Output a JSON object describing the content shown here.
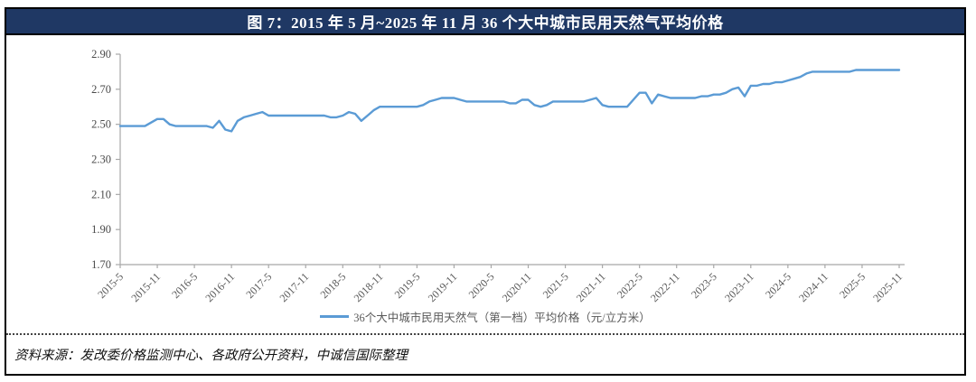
{
  "figure": {
    "title": "图 7：2015 年 5 月~2025 年 11 月 36 个大中城市民用天然气平均价格"
  },
  "chart_data": {
    "type": "line",
    "title": "图 7：2015 年 5 月~2025 年 11 月 36 个大中城市民用天然气平均价格",
    "xlabel": "",
    "ylabel": "",
    "x_start": "2015-5",
    "x_end": "2025-11",
    "x_frequency": "monthly",
    "x_tick_every_n_months": 6,
    "x_tick_labels": [
      "2015-5",
      "2015-11",
      "2016-5",
      "2016-11",
      "2017-5",
      "2017-11",
      "2018-5",
      "2018-11",
      "2019-5",
      "2019-11",
      "2020-5",
      "2020-11",
      "2021-5",
      "2021-11",
      "2022-5",
      "2022-11",
      "2023-5",
      "2023-11",
      "2024-5",
      "2024-11",
      "2025-5",
      "2025-11"
    ],
    "y_tick_labels": [
      "2.90",
      "2.70",
      "2.50",
      "2.30",
      "2.10",
      "1.90",
      "1.70"
    ],
    "ylim": [
      1.7,
      2.9
    ],
    "grid": false,
    "legend_position": "bottom",
    "series": [
      {
        "name": "36个大中城市民用天然气（第一档）平均价格（元/立方米）",
        "color": "#5B9BD5",
        "values": [
          2.49,
          2.49,
          2.49,
          2.49,
          2.49,
          2.51,
          2.53,
          2.53,
          2.5,
          2.49,
          2.49,
          2.49,
          2.49,
          2.49,
          2.49,
          2.48,
          2.52,
          2.47,
          2.46,
          2.52,
          2.54,
          2.55,
          2.56,
          2.57,
          2.55,
          2.55,
          2.55,
          2.55,
          2.55,
          2.55,
          2.55,
          2.55,
          2.55,
          2.55,
          2.54,
          2.54,
          2.55,
          2.57,
          2.56,
          2.52,
          2.55,
          2.58,
          2.6,
          2.6,
          2.6,
          2.6,
          2.6,
          2.6,
          2.6,
          2.61,
          2.63,
          2.64,
          2.65,
          2.65,
          2.65,
          2.64,
          2.63,
          2.63,
          2.63,
          2.63,
          2.63,
          2.63,
          2.63,
          2.62,
          2.62,
          2.64,
          2.64,
          2.61,
          2.6,
          2.61,
          2.63,
          2.63,
          2.63,
          2.63,
          2.63,
          2.63,
          2.64,
          2.65,
          2.61,
          2.6,
          2.6,
          2.6,
          2.6,
          2.64,
          2.68,
          2.68,
          2.62,
          2.67,
          2.66,
          2.65,
          2.65,
          2.65,
          2.65,
          2.65,
          2.66,
          2.66,
          2.67,
          2.67,
          2.68,
          2.7,
          2.71,
          2.66,
          2.72,
          2.72,
          2.73,
          2.73,
          2.74,
          2.74,
          2.75,
          2.76,
          2.77,
          2.79,
          2.8,
          2.8,
          2.8,
          2.8,
          2.8,
          2.8,
          2.8,
          2.81,
          2.81,
          2.81,
          2.81,
          2.81,
          2.81,
          2.81,
          2.81
        ]
      }
    ]
  },
  "source": {
    "text": "资料来源：发改委价格监测中心、各政府公开资料，中诚信国际整理"
  },
  "colors": {
    "title_bar_bg": "#1F3864",
    "title_text": "#FFFFFF",
    "line": "#5B9BD5",
    "axis": "#A8A8A8",
    "y_tick_label": "#4A4A4A",
    "x_tick_label": "#595959"
  }
}
